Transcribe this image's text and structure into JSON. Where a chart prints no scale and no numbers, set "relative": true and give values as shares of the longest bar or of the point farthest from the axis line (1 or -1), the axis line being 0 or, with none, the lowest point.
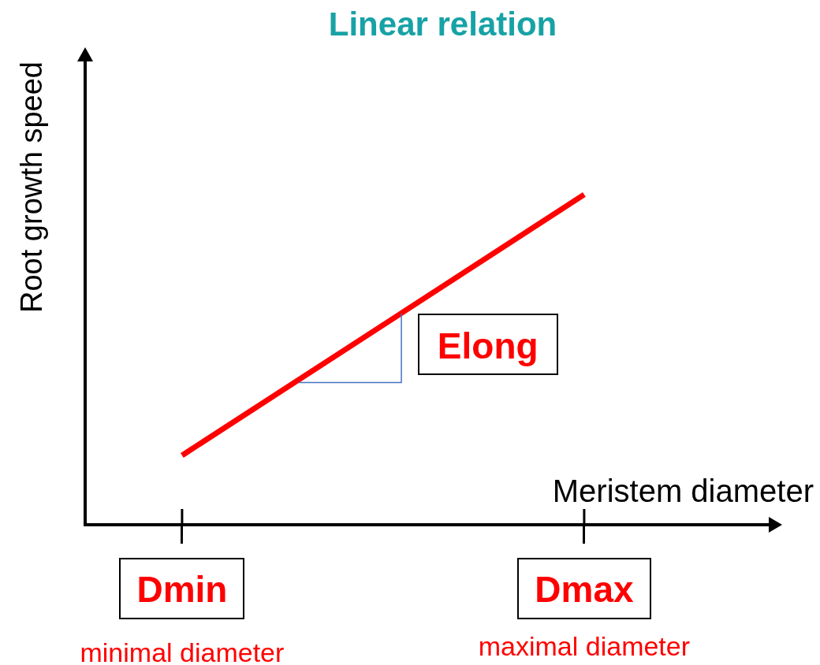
{
  "chart_data": {
    "type": "line",
    "title": "Linear relation",
    "xlabel": "Meristem diameter",
    "ylabel": "Root growth speed",
    "categories": [
      "Dmin",
      "Dmax"
    ],
    "values": [
      0.21,
      1
    ],
    "color": "#ff0000",
    "relative": true,
    "annotations": [
      "Elong",
      "minimal diameter",
      "maximal diameter"
    ]
  }
}
